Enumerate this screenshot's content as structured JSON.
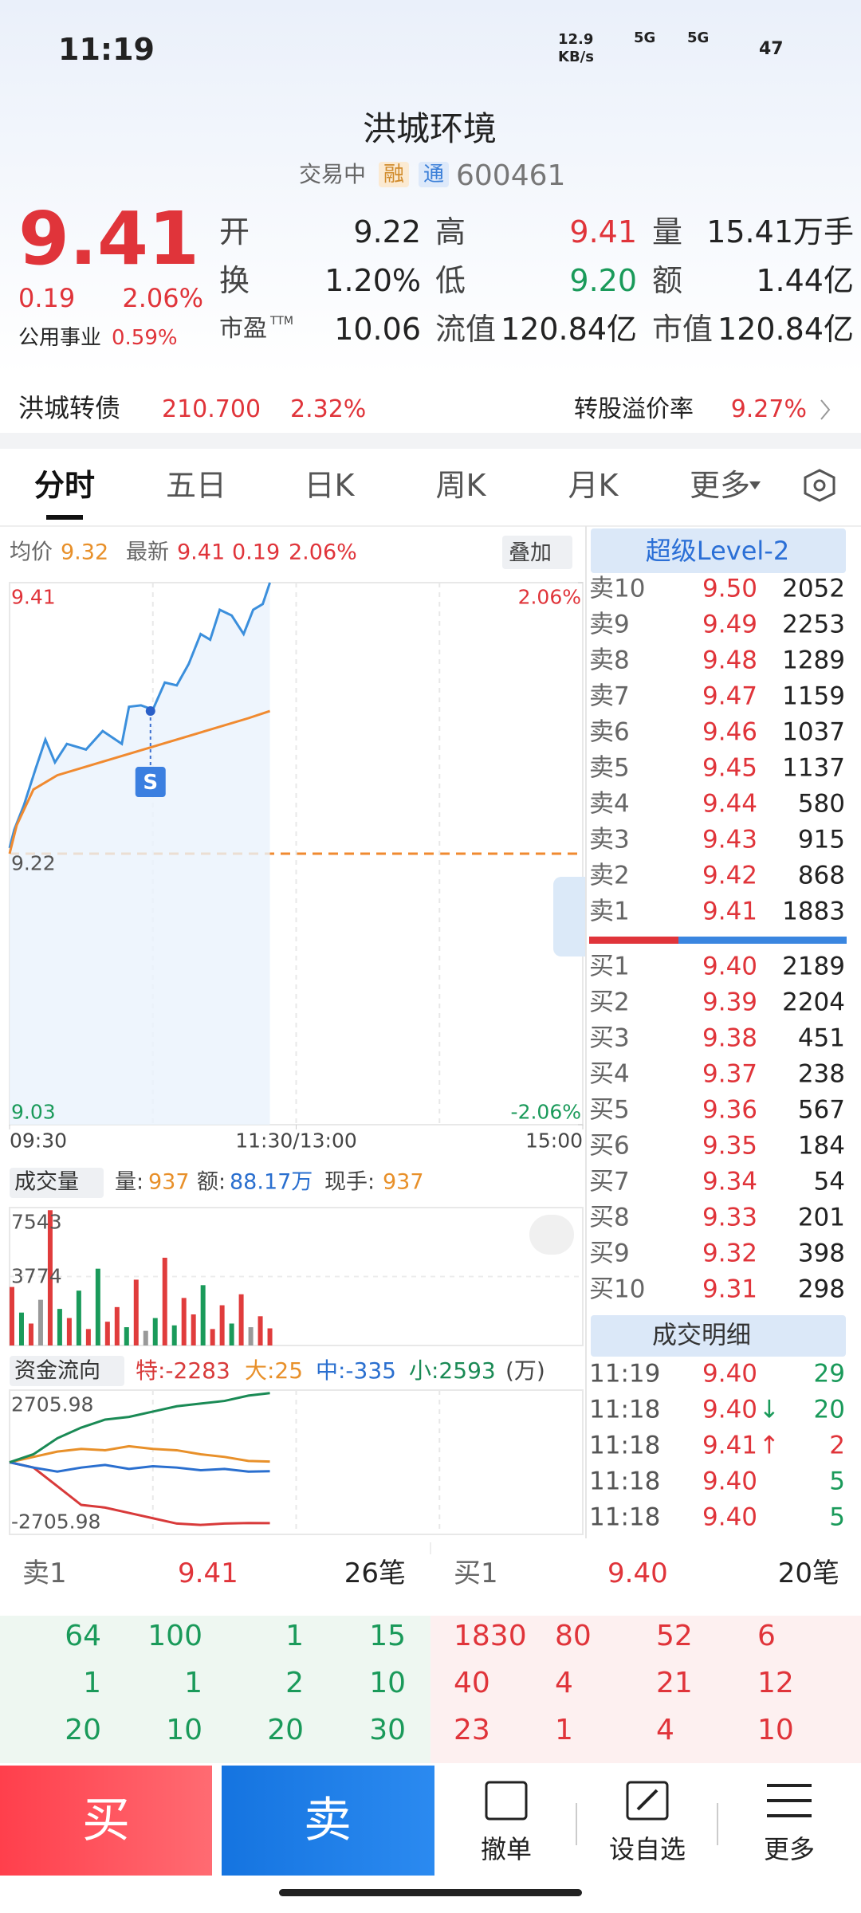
{
  "status_bar": {
    "time": "11:19",
    "speed": "12.9",
    "speed_unit": "KB/s",
    "net1": "5G",
    "net2": "5G",
    "battery": "47"
  },
  "header": {
    "title": "洪城环境",
    "state": "交易中",
    "badge1": "融",
    "badge2": "通",
    "code": "600461"
  },
  "quote": {
    "price": "9.41",
    "change": "0.19",
    "change_pct": "2.06%",
    "sector": "公用事业",
    "sector_pct": "0.59%"
  },
  "stats": {
    "rows": [
      [
        {
          "label": "开",
          "value": "9.22"
        },
        {
          "label": "高",
          "value": "9.41"
        },
        {
          "label": "量",
          "value": "15.41万手"
        }
      ],
      [
        {
          "label": "换",
          "value": "1.20%"
        },
        {
          "label": "低",
          "value": "9.20"
        },
        {
          "label": "额",
          "value": "1.44亿"
        }
      ],
      [
        {
          "label": "市盈",
          "sup": "TTM",
          "value": "10.06"
        },
        {
          "label": "流值",
          "value": "120.84亿"
        },
        {
          "label": "市值",
          "value": "120.84亿"
        }
      ]
    ]
  },
  "bond": {
    "name": "洪城转债",
    "price": "210.700",
    "pct": "2.32%",
    "premium_label": "转股溢价率",
    "premium": "9.27%"
  },
  "tabs": [
    "分时",
    "五日",
    "日K",
    "周K",
    "月K",
    "更多"
  ],
  "chart_header": {
    "avg_label": "均价",
    "avg": "9.32",
    "last_label": "最新",
    "last": "9.41",
    "change": "0.19",
    "change_pct": "2.06%",
    "overlay": "叠加"
  },
  "volume_header": {
    "title": "成交量",
    "vol_label": "量:",
    "vol": "937",
    "amt_label": "额:",
    "amt": "88.17万",
    "hand_label": "现手:",
    "hand": "937"
  },
  "chart_data": [
    {
      "type": "line",
      "xlim": [
        0,
        240
      ],
      "xticks": [
        {
          "value": 0,
          "label": "09:30"
        },
        {
          "value": 120,
          "label": "11:30/13:00"
        },
        {
          "value": 240,
          "label": "15:00"
        }
      ],
      "ylim": [
        9.03,
        9.41
      ],
      "yticks": [
        9.41,
        9.22,
        9.03
      ],
      "y2lim": [
        -2.06,
        2.06
      ],
      "y2ticks": [
        {
          "value": 2.06,
          "label": "2.06%"
        },
        {
          "value": -2.06,
          "label": "-2.06%"
        }
      ],
      "grid": true,
      "series": [
        {
          "color": "#3b8fdc",
          "x": [
            0,
            2,
            6,
            11,
            15,
            19,
            24,
            32,
            39,
            47,
            50,
            55,
            60,
            65,
            70,
            75,
            80,
            84,
            88,
            93,
            98,
            102,
            106,
            109
          ],
          "values": [
            9.224,
            9.237,
            9.254,
            9.28,
            9.3,
            9.284,
            9.297,
            9.293,
            9.306,
            9.297,
            9.323,
            9.324,
            9.321,
            9.34,
            9.338,
            9.353,
            9.374,
            9.37,
            9.391,
            9.387,
            9.374,
            9.391,
            9.395,
            9.41
          ]
        },
        {
          "color": "#f08a30",
          "x": [
            0,
            3,
            10,
            20,
            40,
            60,
            80,
            100,
            109
          ],
          "values": [
            9.22,
            9.24,
            9.265,
            9.275,
            9.285,
            9.295,
            9.305,
            9.315,
            9.32
          ]
        }
      ],
      "marker": {
        "label": "S",
        "x": 59,
        "value": 9.32
      }
    },
    {
      "type": "bar",
      "xlim": [
        0,
        240
      ],
      "ylim": [
        0,
        7543
      ],
      "yticks": [
        3774,
        7543
      ],
      "x": [
        1,
        5,
        9,
        13,
        17,
        21,
        25,
        29,
        33,
        37,
        41,
        45,
        49,
        53,
        57,
        61,
        65,
        69,
        73,
        77,
        81,
        85,
        89,
        93,
        97,
        101,
        105,
        109
      ],
      "values": [
        3200,
        1800,
        1200,
        2500,
        7400,
        2000,
        1500,
        3000,
        900,
        4200,
        1300,
        2100,
        1000,
        3600,
        800,
        1500,
        4800,
        1100,
        2600,
        1700,
        3300,
        900,
        2200,
        1200,
        2800,
        1000,
        1600,
        937
      ],
      "colors": [
        "#e03c3c",
        "#1a9a5a",
        "#e03c3c",
        "#999999",
        "#e03c3c",
        "#1a9a5a",
        "#e03c3c",
        "#1a9a5a",
        "#e03c3c",
        "#1a9a5a",
        "#e03c3c",
        "#e03c3c",
        "#1a9a5a",
        "#e03c3c",
        "#999999",
        "#1a9a5a",
        "#e03c3c",
        "#1a9a5a",
        "#e03c3c",
        "#e03c3c",
        "#1a9a5a",
        "#e03c3c",
        "#e03c3c",
        "#1a9a5a",
        "#e03c3c",
        "#999999",
        "#e03c3c",
        "#e03c3c"
      ]
    },
    {
      "type": "line",
      "title": "资金流向",
      "legend": [
        "特:-2283",
        "大:25",
        "中:-335",
        "小:2593"
      ],
      "unit": "(万)",
      "xlim": [
        0,
        240
      ],
      "ylim": [
        -2705.98,
        2705.98
      ],
      "yticks": [
        2705.98,
        -2705.98
      ],
      "x": [
        0,
        10,
        20,
        30,
        40,
        50,
        60,
        70,
        80,
        90,
        100,
        109
      ],
      "series": [
        {
          "color": "#d83a3a",
          "values": [
            0,
            -200,
            -900,
            -1600,
            -1700,
            -1900,
            -2100,
            -2300,
            -2350,
            -2300,
            -2280,
            -2283
          ]
        },
        {
          "color": "#e8902a",
          "values": [
            0,
            200,
            400,
            500,
            450,
            600,
            500,
            450,
            300,
            200,
            50,
            25
          ]
        },
        {
          "color": "#2a6fcf",
          "values": [
            0,
            -200,
            -350,
            -200,
            -100,
            -250,
            -150,
            -200,
            -300,
            -250,
            -350,
            -335
          ]
        },
        {
          "color": "#1a8a55",
          "values": [
            0,
            300,
            900,
            1300,
            1600,
            1700,
            1900,
            2100,
            2200,
            2300,
            2500,
            2593
          ]
        }
      ]
    }
  ],
  "order_book": {
    "title": "超级Level-2",
    "asks": [
      [
        "卖10",
        "9.50",
        "2052"
      ],
      [
        "卖9",
        "9.49",
        "2253"
      ],
      [
        "卖8",
        "9.48",
        "1289"
      ],
      [
        "卖7",
        "9.47",
        "1159"
      ],
      [
        "卖6",
        "9.46",
        "1037"
      ],
      [
        "卖5",
        "9.45",
        "1137"
      ],
      [
        "卖4",
        "9.44",
        "580"
      ],
      [
        "卖3",
        "9.43",
        "915"
      ],
      [
        "卖2",
        "9.42",
        "868"
      ],
      [
        "卖1",
        "9.41",
        "1883"
      ]
    ],
    "bids": [
      [
        "买1",
        "9.40",
        "2189"
      ],
      [
        "买2",
        "9.39",
        "2204"
      ],
      [
        "买3",
        "9.38",
        "451"
      ],
      [
        "买4",
        "9.37",
        "238"
      ],
      [
        "买5",
        "9.36",
        "567"
      ],
      [
        "买6",
        "9.35",
        "184"
      ],
      [
        "买7",
        "9.34",
        "54"
      ],
      [
        "买8",
        "9.33",
        "201"
      ],
      [
        "买9",
        "9.32",
        "398"
      ],
      [
        "买10",
        "9.31",
        "298"
      ]
    ]
  },
  "trades": {
    "title": "成交明细",
    "rows": [
      {
        "time": "11:19",
        "price": "9.40",
        "qty": "29",
        "color": "#1a9a5a"
      },
      {
        "time": "11:18",
        "price": "9.40",
        "dir": "↓",
        "qty": "20",
        "color": "#1a9a5a"
      },
      {
        "time": "11:18",
        "price": "9.41",
        "dir": "↑",
        "qty": "2",
        "color": "#e0343a"
      },
      {
        "time": "11:18",
        "price": "9.40",
        "qty": "5",
        "color": "#1a9a5a"
      },
      {
        "time": "11:18",
        "price": "9.40",
        "qty": "5",
        "color": "#1a9a5a"
      }
    ]
  },
  "tape": {
    "sell": {
      "label": "卖1",
      "price": "9.41",
      "count": "26笔",
      "grid": [
        [
          "64",
          "100",
          "1",
          "15"
        ],
        [
          "1",
          "1",
          "2",
          "10"
        ],
        [
          "20",
          "10",
          "20",
          "30"
        ]
      ]
    },
    "buy": {
      "label": "买1",
      "price": "9.40",
      "count": "20笔",
      "grid": [
        [
          "1830",
          "80",
          "52",
          "6"
        ],
        [
          "40",
          "4",
          "21",
          "12"
        ],
        [
          "23",
          "1",
          "4",
          "10"
        ]
      ]
    }
  },
  "actions": [
    "买",
    "卖",
    "撤单",
    "设自选",
    "更多"
  ]
}
